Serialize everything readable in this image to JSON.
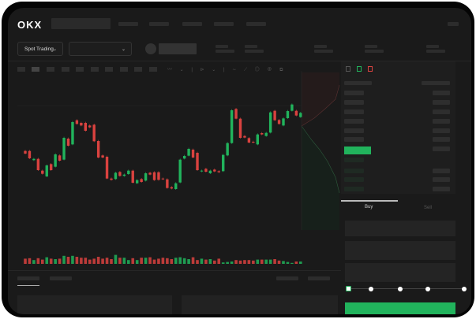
{
  "header": {
    "logo": "OKX"
  },
  "toolbar": {
    "market_select": "Spot Trading"
  },
  "trade": {
    "buy_tab": "Buy",
    "sell_tab": "Sell",
    "slider_fraction": 0
  },
  "colors": {
    "up": "#21b35c",
    "down": "#d9423f",
    "background": "#1a1a1a"
  },
  "chart_data": {
    "type": "candlestick",
    "candles": [
      [
        185,
        175,
        "d"
      ],
      [
        185,
        157,
        "d"
      ],
      [
        150,
        155,
        "u"
      ],
      [
        155,
        112,
        "d"
      ],
      [
        110,
        98,
        "d"
      ],
      [
        88,
        130,
        "u"
      ],
      [
        135,
        112,
        "d"
      ],
      [
        125,
        172,
        "u"
      ],
      [
        168,
        148,
        "d"
      ],
      [
        152,
        235,
        "u"
      ],
      [
        232,
        205,
        "d"
      ],
      [
        210,
        295,
        "u"
      ],
      [
        302,
        288,
        "d"
      ],
      [
        292,
        282,
        "d"
      ],
      [
        292,
        262,
        "d"
      ],
      [
        282,
        275,
        "d"
      ],
      [
        285,
        222,
        "d"
      ],
      [
        223,
        160,
        "d"
      ],
      [
        168,
        160,
        "d"
      ],
      [
        163,
        80,
        "d"
      ],
      [
        80,
        75,
        "d"
      ],
      [
        78,
        102,
        "u"
      ],
      [
        105,
        90,
        "d"
      ],
      [
        90,
        95,
        "u"
      ],
      [
        97,
        110,
        "u"
      ],
      [
        110,
        64,
        "d"
      ],
      [
        62,
        74,
        "u"
      ],
      [
        78,
        67,
        "d"
      ],
      [
        72,
        100,
        "u"
      ],
      [
        102,
        95,
        "d"
      ],
      [
        104,
        74,
        "d"
      ],
      [
        104,
        75,
        "d"
      ],
      [
        80,
        77,
        "d"
      ],
      [
        77,
        44,
        "d"
      ],
      [
        47,
        42,
        "d"
      ],
      [
        40,
        62,
        "u"
      ],
      [
        65,
        152,
        "u"
      ],
      [
        156,
        166,
        "u"
      ],
      [
        167,
        193,
        "u"
      ],
      [
        190,
        160,
        "d"
      ],
      [
        178,
        112,
        "d"
      ],
      [
        107,
        110,
        "u"
      ],
      [
        117,
        106,
        "d"
      ],
      [
        100,
        110,
        "u"
      ],
      [
        114,
        107,
        "d"
      ],
      [
        108,
        104,
        "d"
      ],
      [
        108,
        170,
        "u"
      ],
      [
        168,
        215,
        "u"
      ],
      [
        215,
        340,
        "u"
      ],
      [
        345,
        308,
        "d"
      ],
      [
        308,
        235,
        "d"
      ],
      [
        242,
        236,
        "d"
      ],
      [
        234,
        217,
        "d"
      ],
      [
        220,
        217,
        "d"
      ],
      [
        210,
        248,
        "u"
      ],
      [
        253,
        248,
        "d"
      ],
      [
        242,
        254,
        "u"
      ],
      [
        255,
        332,
        "u"
      ],
      [
        338,
        302,
        "d"
      ],
      [
        303,
        288,
        "d"
      ],
      [
        282,
        309,
        "u"
      ],
      [
        310,
        337,
        "u"
      ],
      [
        338,
        362,
        "u"
      ],
      [
        338,
        320,
        "d"
      ],
      [
        314,
        330,
        "u"
      ]
    ],
    "volume": [
      11,
      12,
      8,
      12,
      9,
      14,
      11,
      10,
      11,
      17,
      15,
      17,
      15,
      13,
      13,
      9,
      11,
      15,
      11,
      13,
      10,
      19,
      13,
      13,
      8,
      12,
      8,
      13,
      13,
      14,
      9,
      11,
      13,
      12,
      10,
      13,
      14,
      12,
      10,
      14,
      8,
      11,
      9,
      10,
      7,
      11,
      3,
      4,
      5,
      8,
      7,
      8,
      8,
      7,
      9,
      9,
      9,
      9,
      10,
      7,
      6,
      4,
      2,
      5,
      5
    ]
  }
}
